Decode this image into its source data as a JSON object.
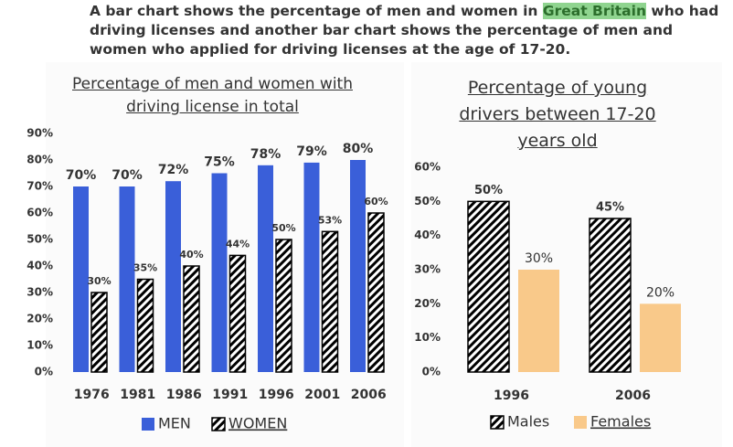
{
  "header": {
    "parts": [
      "A bar chart shows the percentage of men and women in ",
      "Great Britain",
      " who had driving licenses and another bar chart shows the percentage of men and women who applied for driving licenses at the age of 17-20."
    ]
  },
  "chart_data": [
    {
      "type": "bar",
      "title": "Percentage of men and women with driving license in total",
      "categories": [
        "1976",
        "1981",
        "1986",
        "1991",
        "1996",
        "2001",
        "2006"
      ],
      "series": [
        {
          "name": "MEN",
          "color": "#3a5fd9",
          "values": [
            70,
            70,
            72,
            75,
            78,
            79,
            80
          ],
          "value_labels": [
            "70%",
            "70%",
            "72%",
            "75%",
            "78%",
            "79%",
            "80%"
          ]
        },
        {
          "name": "WOMEN",
          "color": "#000000",
          "pattern": "hatch",
          "values": [
            30,
            35,
            40,
            44,
            50,
            53,
            60
          ],
          "value_labels": [
            "30%",
            "35%",
            "40%",
            "44%",
            "50%",
            "53%",
            "60%"
          ]
        }
      ],
      "ylim": [
        0,
        90
      ],
      "yticks": [
        {
          "value": 0,
          "label": "0%"
        },
        {
          "value": 10,
          "label": "10%"
        },
        {
          "value": 20,
          "label": "20%"
        },
        {
          "value": 30,
          "label": "30%"
        },
        {
          "value": 40,
          "label": "40%"
        },
        {
          "value": 50,
          "label": "50%"
        },
        {
          "value": 60,
          "label": "60%"
        },
        {
          "value": 70,
          "label": "70%"
        },
        {
          "value": 80,
          "label": "80%"
        },
        {
          "value": 90,
          "label": "90%"
        }
      ],
      "grid": false,
      "legend": "bottom"
    },
    {
      "type": "bar",
      "title": "Percentage of young drivers between 17-20 years old",
      "categories": [
        "1996",
        "2006"
      ],
      "series": [
        {
          "name": "Males",
          "color": "#000000",
          "pattern": "hatch",
          "values": [
            50,
            45
          ],
          "value_labels": [
            "50%",
            "45%"
          ]
        },
        {
          "name": "Females",
          "color": "#f9c98a",
          "values": [
            30,
            20
          ],
          "value_labels": [
            "30%",
            "20%"
          ]
        }
      ],
      "ylim": [
        0,
        60
      ],
      "yticks": [
        {
          "value": 0,
          "label": "0%"
        },
        {
          "value": 10,
          "label": "10%"
        },
        {
          "value": 20,
          "label": "20%"
        },
        {
          "value": 30,
          "label": "30%"
        },
        {
          "value": 40,
          "label": "40%"
        },
        {
          "value": 50,
          "label": "50%"
        },
        {
          "value": 60,
          "label": "60%"
        }
      ],
      "grid": false,
      "legend": "bottom"
    }
  ]
}
